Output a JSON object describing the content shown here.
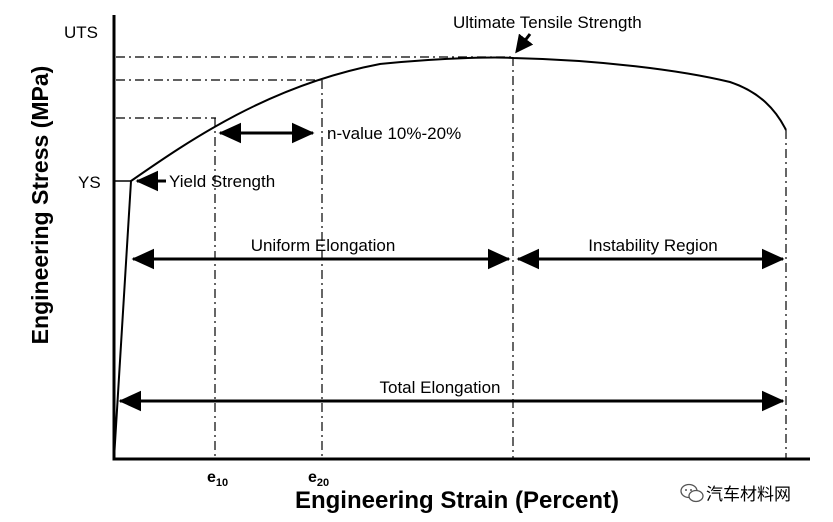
{
  "axes": {
    "y_title": "Engineering Stress (MPa)",
    "x_title": "Engineering Strain (Percent)",
    "y_tick_uts": "UTS",
    "y_tick_ys": "YS",
    "x_tick_e10_base": "e",
    "x_tick_e10_sub": "10",
    "x_tick_e20_base": "e",
    "x_tick_e20_sub": "20"
  },
  "annotations": {
    "uts": "Ultimate Tensile Strength",
    "yield": "Yield Strength",
    "n_value": "n-value 10%-20%",
    "uniform": "Uniform Elongation",
    "instability": "Instability Region",
    "total": "Total Elongation"
  },
  "watermark": "汽车材料网"
}
